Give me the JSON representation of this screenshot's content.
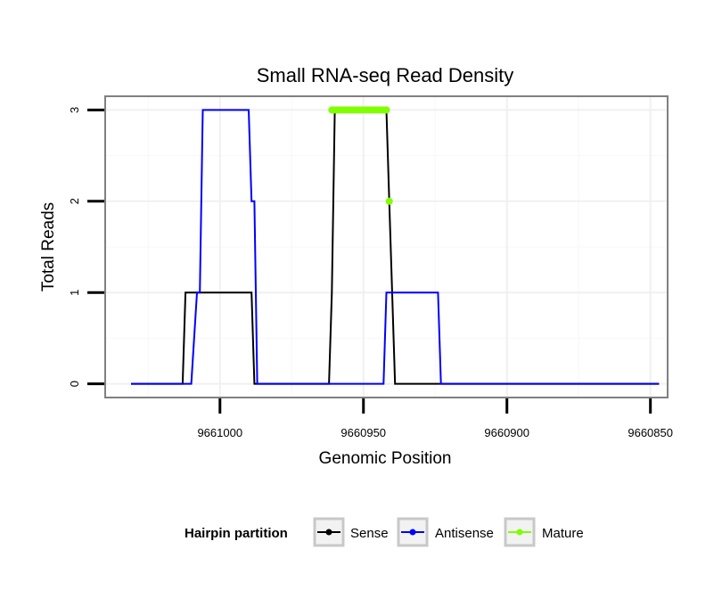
{
  "chart_data": {
    "type": "line",
    "title": "Small RNA-seq Read Density",
    "xlabel": "Genomic Position",
    "ylabel": "Total Reads",
    "x_reversed": true,
    "xlim": [
      9661040,
      9660844
    ],
    "ylim": [
      -0.15,
      3.15
    ],
    "x_ticks": [
      9661000,
      9660950,
      9660900,
      9660850
    ],
    "x_tick_labels": [
      "9661000",
      "9660950",
      "9660900",
      "9660850"
    ],
    "y_ticks": [
      0,
      1,
      2,
      3
    ],
    "y_tick_labels": [
      "0",
      "1",
      "2",
      "3"
    ],
    "grid": true,
    "legend": {
      "title": "Hairpin partition",
      "position": "bottom",
      "entries": [
        "Sense",
        "Antisense",
        "Mature"
      ]
    },
    "series": [
      {
        "name": "Sense",
        "color": "#000000",
        "style": "line",
        "x": [
          9661031,
          9661013,
          9661012,
          9661000,
          9660989,
          9660988,
          9660962,
          9660961,
          9660960,
          9660942,
          9660941,
          9660939,
          9660847
        ],
        "y": [
          0,
          0,
          1,
          1,
          1,
          0,
          0,
          1,
          3,
          3,
          2,
          0,
          0
        ]
      },
      {
        "name": "Antisense",
        "color": "#0000ff",
        "style": "line",
        "x": [
          9661031,
          9661010,
          9661008,
          9661007,
          9661006,
          9660990,
          9660989,
          9660988,
          9660987,
          9660964,
          9660963,
          9660962,
          9660943,
          9660942,
          9660941,
          9660924,
          9660923,
          9660847
        ],
        "y": [
          0,
          0,
          1,
          1,
          3,
          3,
          2,
          2,
          0,
          0,
          0,
          0,
          0,
          1,
          1,
          1,
          0,
          0
        ]
      },
      {
        "name": "Mature",
        "color": "#7fff00",
        "style": "points",
        "x": [
          9660961,
          9660960,
          9660959,
          9660958,
          9660957,
          9660956,
          9660955,
          9660954,
          9660953,
          9660952,
          9660951,
          9660950,
          9660949,
          9660948,
          9660947,
          9660946,
          9660945,
          9660944,
          9660943,
          9660942,
          9660941
        ],
        "y": [
          3,
          3,
          3,
          3,
          3,
          3,
          3,
          3,
          3,
          3,
          3,
          3,
          3,
          3,
          3,
          3,
          3,
          3,
          3,
          3,
          2
        ]
      }
    ]
  }
}
